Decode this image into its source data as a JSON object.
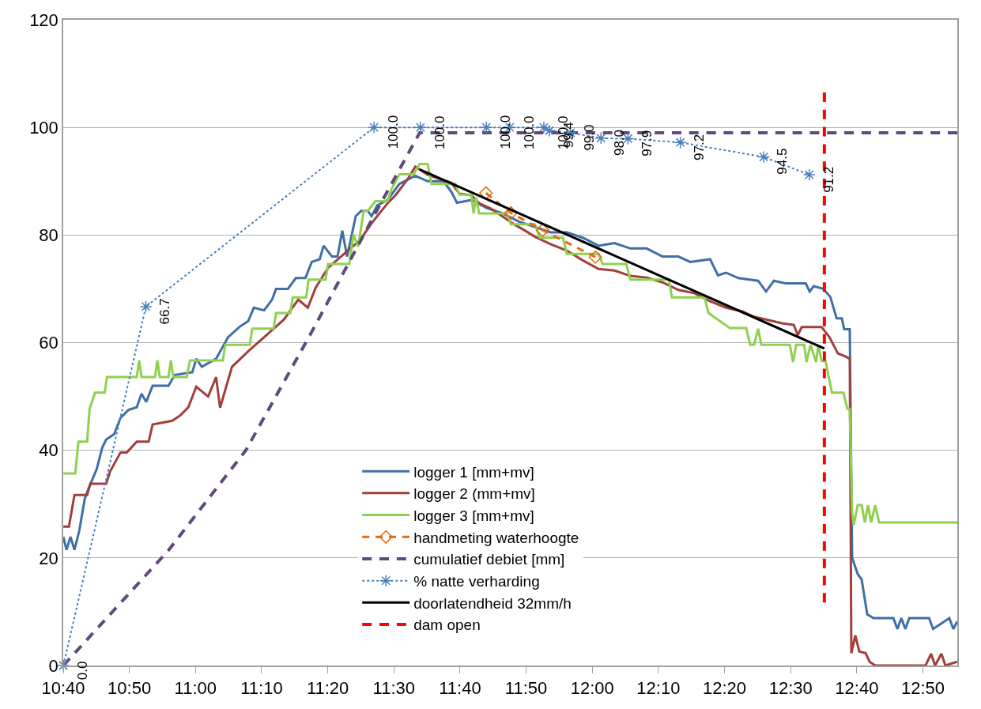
{
  "chart_data": {
    "type": "line",
    "xlim": [
      10.6667,
      12.92
    ],
    "xticks": [
      {
        "value": 10.6667,
        "label": "10:40"
      },
      {
        "value": 10.8333,
        "label": "10:50"
      },
      {
        "value": 11.0,
        "label": "11:00"
      },
      {
        "value": 11.1667,
        "label": "11:10"
      },
      {
        "value": 11.3333,
        "label": "11:20"
      },
      {
        "value": 11.5,
        "label": "11:30"
      },
      {
        "value": 11.6667,
        "label": "11:40"
      },
      {
        "value": 11.8333,
        "label": "11:50"
      },
      {
        "value": 12.0,
        "label": "12:00"
      },
      {
        "value": 12.1667,
        "label": "12:10"
      },
      {
        "value": 12.3333,
        "label": "12:20"
      },
      {
        "value": 12.5,
        "label": "12:30"
      },
      {
        "value": 12.6667,
        "label": "12:40"
      },
      {
        "value": 12.8333,
        "label": "12:50"
      }
    ],
    "ylim": [
      0,
      120
    ],
    "yticks": [
      0,
      20,
      40,
      60,
      80,
      100,
      120
    ],
    "grid": "y",
    "legend": "bottom",
    "series": [
      {
        "name": "logger 1 [mm+mv]",
        "color": "#3f6fa5",
        "marker": "none",
        "line_style": "solid",
        "x": [
          10.667,
          10.675,
          10.685,
          10.695,
          10.707,
          10.721,
          10.731,
          10.751,
          10.765,
          10.775,
          10.795,
          10.811,
          10.831,
          10.852,
          10.864,
          10.876,
          10.892,
          10.932,
          10.948,
          10.992,
          11.002,
          11.016,
          11.052,
          11.082,
          11.112,
          11.133,
          11.147,
          11.173,
          11.193,
          11.203,
          11.233,
          11.253,
          11.277,
          11.293,
          11.313,
          11.323,
          11.344,
          11.358,
          11.37,
          11.382,
          11.404,
          11.418,
          11.434,
          11.444,
          11.458,
          11.484,
          11.514,
          11.554,
          11.585,
          11.625,
          11.645,
          11.659,
          11.695,
          11.735,
          11.775,
          11.815,
          11.855,
          11.895,
          11.936,
          11.976,
          12.016,
          12.056,
          12.096,
          12.137,
          12.177,
          12.217,
          12.247,
          12.297,
          12.317,
          12.337,
          12.368,
          12.418,
          12.438,
          12.458,
          12.488,
          12.538,
          12.548,
          12.558,
          12.582,
          12.6,
          12.616,
          12.629,
          12.635,
          12.649,
          12.655,
          12.669,
          12.679,
          12.693,
          12.709,
          12.759,
          12.769,
          12.779,
          12.789,
          12.799,
          12.849,
          12.859,
          12.9,
          12.91,
          12.92
        ],
        "values": [
          23.9,
          21.5,
          23.9,
          21.5,
          25.0,
          31.0,
          33.0,
          36.5,
          40.5,
          42.0,
          43.0,
          46.0,
          47.5,
          48.0,
          50.5,
          49.0,
          52.0,
          52.0,
          54.0,
          54.5,
          57.0,
          55.5,
          57.0,
          61.0,
          63.0,
          64.0,
          66.5,
          66.0,
          68.0,
          70.0,
          70.0,
          72.0,
          72.0,
          75.0,
          75.5,
          78.0,
          76.0,
          76.0,
          80.8,
          76.0,
          83.5,
          84.5,
          84.5,
          83.5,
          85.5,
          86.5,
          89.5,
          91.0,
          90.0,
          90.0,
          88.0,
          86.0,
          86.5,
          85.0,
          84.0,
          82.5,
          81.5,
          80.5,
          80.5,
          79.5,
          78.0,
          78.5,
          77.5,
          77.5,
          76.0,
          76.0,
          75.0,
          75.5,
          72.5,
          73.0,
          72.0,
          71.5,
          69.5,
          71.5,
          71.0,
          71.0,
          69.5,
          70.5,
          70.0,
          68.5,
          64.5,
          64.5,
          62.5,
          62.5,
          20.0,
          17.0,
          16.0,
          9.5,
          8.8,
          8.8,
          6.8,
          8.8,
          6.8,
          8.8,
          8.8,
          6.8,
          8.8,
          6.8,
          8.2
        ]
      },
      {
        "name": "logger 2 (mm+mv]",
        "color": "#a0403c",
        "marker": "none",
        "line_style": "solid",
        "x": [
          10.667,
          10.681,
          10.695,
          10.727,
          10.735,
          10.775,
          10.785,
          10.811,
          10.827,
          10.852,
          10.882,
          10.892,
          10.942,
          10.962,
          10.982,
          11.002,
          11.032,
          11.052,
          11.062,
          11.092,
          11.133,
          11.173,
          11.223,
          11.259,
          11.283,
          11.303,
          11.334,
          11.384,
          11.414,
          11.444,
          11.484,
          11.504,
          11.534,
          11.554,
          11.585,
          11.645,
          11.665,
          11.695,
          11.715,
          11.745,
          11.775,
          11.805,
          11.831,
          11.855,
          11.895,
          11.936,
          11.976,
          12.016,
          12.056,
          12.096,
          12.137,
          12.177,
          12.217,
          12.257,
          12.297,
          12.337,
          12.378,
          12.408,
          12.438,
          12.478,
          12.508,
          12.518,
          12.528,
          12.578,
          12.598,
          12.619,
          12.639,
          12.649,
          12.653,
          12.663,
          12.673,
          12.689,
          12.699,
          12.713,
          12.84,
          12.854,
          12.864,
          12.88,
          12.89,
          12.92
        ],
        "values": [
          25.8,
          25.8,
          31.7,
          31.7,
          33.8,
          33.8,
          36.1,
          39.6,
          39.6,
          41.6,
          41.6,
          44.8,
          45.5,
          46.5,
          48.0,
          51.8,
          50.0,
          53.6,
          47.9,
          55.5,
          58.4,
          61.0,
          64.3,
          68.0,
          66.5,
          70.2,
          73.9,
          77.1,
          79.0,
          82.2,
          85.9,
          87.4,
          90.3,
          92.7,
          91.2,
          89.7,
          87.7,
          87.4,
          85.9,
          84.9,
          83.4,
          81.9,
          80.8,
          79.7,
          78.3,
          77.1,
          75.3,
          73.7,
          73.4,
          72.4,
          72.1,
          71.2,
          69.8,
          69.2,
          67.7,
          66.5,
          65.8,
          64.8,
          64.3,
          63.6,
          63.3,
          61.4,
          62.9,
          62.9,
          61.0,
          58.0,
          57.4,
          57.0,
          2.3,
          5.6,
          2.6,
          2.3,
          0.7,
          0,
          0,
          2.2,
          0,
          2.2,
          0,
          0.7
        ]
      },
      {
        "name": "logger 3 [mm+mv]",
        "color": "#8fd14f",
        "marker": "none",
        "line_style": "solid",
        "x": [
          10.667,
          10.697,
          10.705,
          10.727,
          10.733,
          10.747,
          10.771,
          10.777,
          10.852,
          10.858,
          10.864,
          10.898,
          10.904,
          10.91,
          10.932,
          10.938,
          10.944,
          10.978,
          10.986,
          11.069,
          11.075,
          11.137,
          11.143,
          11.197,
          11.203,
          11.239,
          11.245,
          11.279,
          11.285,
          11.328,
          11.334,
          11.388,
          11.398,
          11.41,
          11.424,
          11.434,
          11.454,
          11.484,
          11.494,
          11.514,
          11.55,
          11.565,
          11.585,
          11.595,
          11.655,
          11.665,
          11.695,
          11.701,
          11.707,
          11.715,
          11.785,
          11.795,
          11.855,
          11.868,
          11.926,
          11.936,
          12.016,
          12.026,
          12.086,
          12.096,
          12.193,
          12.201,
          12.283,
          12.293,
          12.347,
          12.388,
          12.398,
          12.408,
          12.418,
          12.426,
          12.498,
          12.506,
          12.514,
          12.534,
          12.54,
          12.55,
          12.564,
          12.57,
          12.578,
          12.588,
          12.604,
          12.633,
          12.643,
          12.649,
          12.655,
          12.659,
          12.669,
          12.679,
          12.687,
          12.695,
          12.703,
          12.713,
          12.723,
          12.92
        ],
        "values": [
          35.7,
          35.7,
          41.6,
          41.6,
          47.7,
          50.7,
          50.7,
          53.6,
          53.6,
          56.7,
          53.6,
          53.6,
          56.7,
          53.6,
          53.6,
          56.7,
          53.6,
          53.6,
          56.7,
          56.7,
          59.6,
          59.6,
          62.6,
          62.6,
          65.5,
          65.5,
          68.4,
          68.4,
          71.7,
          71.7,
          74.6,
          74.6,
          80.1,
          77.8,
          84.5,
          84.5,
          86.3,
          86.3,
          88.5,
          91.3,
          91.3,
          93.2,
          93.2,
          89.5,
          89.5,
          87.5,
          87.5,
          84.0,
          87.0,
          84.0,
          84.0,
          82.0,
          82.0,
          79.5,
          79.5,
          76.5,
          76.5,
          74.6,
          74.6,
          71.7,
          71.7,
          68.4,
          68.4,
          65.5,
          62.7,
          62.7,
          59.6,
          59.6,
          62.6,
          59.6,
          59.6,
          56.4,
          59.6,
          59.6,
          56.4,
          59.6,
          56.4,
          59.6,
          56.6,
          56.6,
          50.7,
          50.7,
          47.7,
          47.7,
          28.3,
          26.1,
          29.8,
          29.8,
          26.6,
          29.8,
          26.6,
          29.8,
          26.6,
          26.6
        ]
      },
      {
        "name": "handmeting waterhoogte",
        "color": "#e46c0a",
        "marker": "diamond",
        "line_style": "dashed",
        "x": [
          11.732,
          11.795,
          11.875,
          12.008
        ],
        "values": [
          87.8,
          84.1,
          80.9,
          75.9
        ]
      },
      {
        "name": "cumulatief debiet [mm]",
        "color": "#604a7b",
        "marker": "none",
        "line_style": "dashed",
        "x": [
          10.667,
          10.932,
          11.127,
          11.293,
          11.453,
          11.565,
          12.92
        ],
        "values": [
          0,
          21.4,
          40.0,
          62.0,
          84.0,
          99.0,
          99.0
        ]
      },
      {
        "name": "% natte verharding",
        "color": "#4a7ebb",
        "marker": "cross",
        "line_style": "dotted",
        "x": [
          10.667,
          10.875,
          11.45,
          11.567,
          11.733,
          11.792,
          11.878,
          11.892,
          11.945,
          12.022,
          12.09,
          12.222,
          12.432,
          12.547
        ],
        "values": [
          0,
          66.7,
          100,
          100,
          100,
          100,
          100,
          99.4,
          99.0,
          98.0,
          97.9,
          97.2,
          94.5,
          91.2
        ],
        "value_labels": [
          "0.0",
          "66.7",
          "100.0",
          "100.0",
          "100.0",
          "100.0",
          "100.0",
          "99.4",
          "99.0",
          "98.0",
          "97.9",
          "97.2",
          "94.5",
          "91.2"
        ]
      },
      {
        "name": "doorlatendheid 32mm/h",
        "color": "#000000",
        "marker": "none",
        "line_style": "solid",
        "x": [
          11.565,
          12.585
        ],
        "values": [
          92.2,
          58.9
        ]
      },
      {
        "name": "dam open",
        "color": "#ff0000",
        "marker": "none",
        "line_style": "dashed",
        "x": [
          12.585,
          12.585
        ],
        "values": [
          106.5,
          11.7
        ]
      }
    ]
  }
}
